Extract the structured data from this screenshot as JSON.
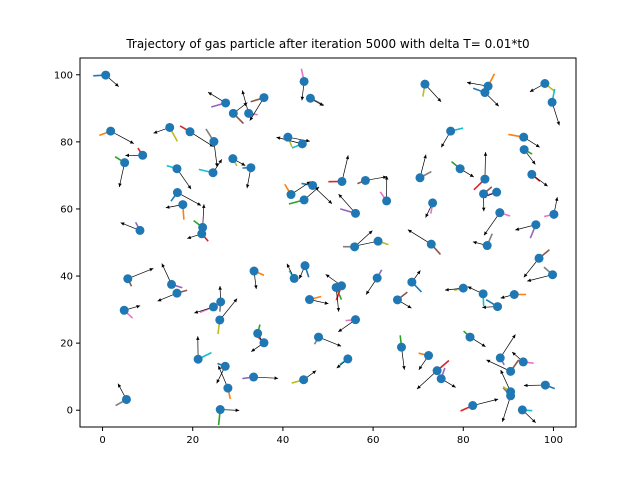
{
  "chart_data": {
    "type": "scatter",
    "title": "Trajectory of gas particle after iteration 5000 with delta T= 0.01*t0",
    "xlabel": "",
    "ylabel": "",
    "xlim": [
      -5,
      105
    ],
    "ylim": [
      -5,
      105
    ],
    "xticks": [
      "0",
      "20",
      "40",
      "60",
      "80",
      "100"
    ],
    "yticks": [
      "0",
      "20",
      "40",
      "60",
      "80",
      "100"
    ],
    "grid": false,
    "marker_color": "#1f77b4",
    "trail_colors": [
      "#1f77b4",
      "#ff7f0e",
      "#2ca02c",
      "#d62728",
      "#9467bd",
      "#8c564b",
      "#e377c2",
      "#7f7f7f",
      "#bcbd22",
      "#17becf"
    ],
    "points": [
      [
        0.7,
        99.9
      ],
      [
        1.8,
        83.2
      ],
      [
        4.9,
        73.8
      ],
      [
        8.9,
        76.0
      ],
      [
        8.3,
        53.6
      ],
      [
        5.6,
        39.2
      ],
      [
        4.8,
        29.8
      ],
      [
        5.3,
        3.2
      ],
      [
        14.9,
        84.3
      ],
      [
        16.5,
        72.0
      ],
      [
        16.6,
        64.9
      ],
      [
        17.8,
        61.3
      ],
      [
        22.2,
        54.5
      ],
      [
        22.0,
        52.6
      ],
      [
        15.3,
        37.5
      ],
      [
        16.5,
        34.9
      ],
      [
        24.6,
        30.8
      ],
      [
        26.2,
        32.3
      ],
      [
        26.0,
        26.9
      ],
      [
        21.2,
        15.2
      ],
      [
        27.2,
        13.1
      ],
      [
        27.8,
        6.6
      ],
      [
        26.1,
        0.2
      ],
      [
        19.4,
        83.0
      ],
      [
        27.3,
        91.6
      ],
      [
        29.0,
        88.5
      ],
      [
        32.4,
        88.5
      ],
      [
        24.7,
        80.1
      ],
      [
        28.9,
        75.0
      ],
      [
        24.5,
        70.8
      ],
      [
        32.9,
        72.3
      ],
      [
        33.6,
        41.5
      ],
      [
        34.4,
        22.9
      ],
      [
        35.8,
        20.1
      ],
      [
        33.5,
        9.9
      ],
      [
        35.8,
        93.2
      ],
      [
        44.7,
        98.0
      ],
      [
        46.1,
        93.0
      ],
      [
        41.1,
        81.4
      ],
      [
        44.3,
        79.4
      ],
      [
        46.6,
        67.0
      ],
      [
        41.8,
        64.3
      ],
      [
        44.7,
        62.7
      ],
      [
        53.1,
        68.2
      ],
      [
        56.1,
        58.7
      ],
      [
        58.3,
        68.5
      ],
      [
        63.0,
        62.4
      ],
      [
        55.9,
        48.7
      ],
      [
        61.1,
        50.4
      ],
      [
        42.5,
        39.3
      ],
      [
        44.9,
        43.1
      ],
      [
        45.9,
        33.0
      ],
      [
        51.8,
        36.6
      ],
      [
        53.0,
        37.1
      ],
      [
        60.9,
        39.4
      ],
      [
        65.4,
        32.9
      ],
      [
        56.1,
        27.0
      ],
      [
        47.9,
        21.8
      ],
      [
        44.6,
        9.1
      ],
      [
        54.4,
        15.3
      ],
      [
        68.6,
        38.2
      ],
      [
        72.3,
        16.3
      ],
      [
        66.3,
        18.8
      ],
      [
        74.2,
        11.8
      ],
      [
        75.1,
        9.4
      ],
      [
        72.9,
        49.5
      ],
      [
        73.2,
        61.8
      ],
      [
        70.4,
        69.3
      ],
      [
        71.5,
        97.2
      ],
      [
        77.2,
        83.2
      ],
      [
        84.8,
        94.7
      ],
      [
        85.5,
        96.6
      ],
      [
        79.3,
        72.0
      ],
      [
        84.8,
        68.9
      ],
      [
        87.4,
        65.0
      ],
      [
        84.5,
        64.5
      ],
      [
        88.1,
        58.9
      ],
      [
        85.3,
        49.1
      ],
      [
        80.0,
        36.4
      ],
      [
        84.4,
        34.7
      ],
      [
        87.6,
        30.9
      ],
      [
        91.3,
        34.5
      ],
      [
        81.5,
        21.8
      ],
      [
        82.1,
        1.4
      ],
      [
        88.2,
        15.6
      ],
      [
        90.5,
        11.6
      ],
      [
        93.3,
        14.4
      ],
      [
        90.5,
        4.3
      ],
      [
        90.5,
        5.5
      ],
      [
        93.1,
        0.1
      ],
      [
        98.2,
        7.5
      ],
      [
        93.4,
        81.4
      ],
      [
        93.5,
        77.7
      ],
      [
        95.2,
        70.3
      ],
      [
        96.1,
        55.3
      ],
      [
        96.8,
        45.3
      ],
      [
        100.1,
        58.4
      ],
      [
        99.8,
        40.4
      ],
      [
        98.1,
        97.4
      ],
      [
        99.7,
        91.8
      ]
    ]
  }
}
